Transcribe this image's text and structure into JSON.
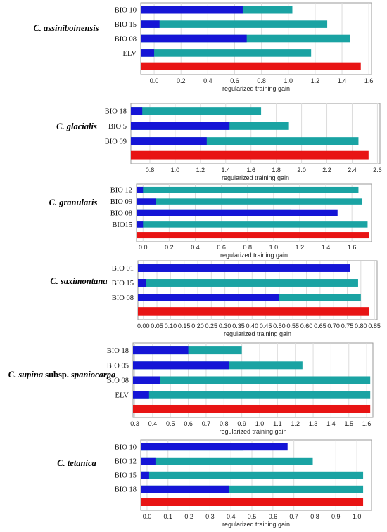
{
  "colors": {
    "without_variable": "#1aa3a3",
    "with_only_variable": "#1515d6",
    "all_variables": "#e81414"
  },
  "chart_data": [
    {
      "type": "bar",
      "title": "C. assiniboinensis",
      "xlabel": "regularized training gain",
      "xlim": [
        -0.1,
        1.62
      ],
      "xticks": [
        0.0,
        0.2,
        0.4,
        0.6,
        0.8,
        1.0,
        1.2,
        1.4,
        1.6
      ],
      "tick_labels": [
        "0.0",
        "0.2",
        "0.4",
        "0.6",
        "0.8",
        "1.0",
        "1.2",
        "1.4",
        "1.6"
      ],
      "categories": [
        "BIO 10",
        "BIO 15",
        "BIO 08",
        "ELV"
      ],
      "series": [
        {
          "values": [
            1.03,
            1.29,
            1.46,
            1.17
          ]
        },
        {
          "values": [
            0.66,
            0.04,
            0.69,
            0.0
          ]
        }
      ],
      "all_variables": 1.54
    },
    {
      "type": "bar",
      "title": "C. glacialis",
      "xlabel": "regularized training gain",
      "xlim": [
        0.65,
        2.62
      ],
      "xticks": [
        0.8,
        1.0,
        1.2,
        1.4,
        1.6,
        1.8,
        2.0,
        2.2,
        2.4,
        2.6
      ],
      "tick_labels": [
        "0.8",
        "1.0",
        "1.2",
        "1.4",
        "1.6",
        "1.8",
        "2.0",
        "2.2",
        "2.4",
        "2.6"
      ],
      "categories": [
        "BIO 18",
        "BIO 5",
        "BIO 09"
      ],
      "series": [
        {
          "values": [
            1.68,
            1.9,
            2.45
          ]
        },
        {
          "values": [
            0.74,
            1.43,
            1.25
          ]
        }
      ],
      "all_variables": 2.53
    },
    {
      "type": "bar",
      "title": "C. granularis",
      "xlabel": "regularized training gain",
      "xlim": [
        -0.05,
        1.75
      ],
      "xticks": [
        0.0,
        0.2,
        0.4,
        0.6,
        0.8,
        1.0,
        1.2,
        1.4,
        1.6
      ],
      "tick_labels": [
        "0.0",
        "0.2",
        "0.4",
        "0.6",
        "0.8",
        "1.0",
        "1.2",
        "1.4",
        "1.6"
      ],
      "categories": [
        "BIO 12",
        "BIO 09",
        "BIO 08",
        "BIO15"
      ],
      "series": [
        {
          "values": [
            1.65,
            1.68,
            1.13,
            1.72
          ]
        },
        {
          "values": [
            0.0,
            0.1,
            1.49,
            0.0
          ]
        }
      ],
      "all_variables": 1.73
    },
    {
      "type": "bar",
      "title": "C. saximontana",
      "xlabel": "regularized training gain",
      "xlim": [
        -0.02,
        0.86
      ],
      "xticks": [
        0.0,
        0.05,
        0.1,
        0.15,
        0.2,
        0.25,
        0.3,
        0.35,
        0.4,
        0.45,
        0.5,
        0.55,
        0.6,
        0.65,
        0.7,
        0.75,
        0.8,
        0.85
      ],
      "tick_labels": [
        "0.00",
        "0.05",
        "0.10",
        "0.15",
        "0.20",
        "0.25",
        "0.30",
        "0.35",
        "0.40",
        "0.45",
        "0.50",
        "0.55",
        "0.60",
        "0.65",
        "0.70",
        "0.75",
        "0.80",
        "0.85"
      ],
      "categories": [
        "BIO 01",
        "BIO 15",
        "BIO 08"
      ],
      "series": [
        {
          "values": [
            0.5,
            0.79,
            0.8
          ]
        },
        {
          "values": [
            0.76,
            0.01,
            0.5
          ]
        }
      ],
      "all_variables": 0.83
    },
    {
      "type": "bar",
      "title": "C. supina",
      "title_suffix": " subsp. ",
      "title_tail": "spaniocarpa",
      "xlabel": "regularized training gain",
      "xlim": [
        0.29,
        1.635
      ],
      "xticks": [
        0.3,
        0.4,
        0.5,
        0.6,
        0.7,
        0.8,
        0.9,
        1.0,
        1.1,
        1.2,
        1.3,
        1.4,
        1.5,
        1.6
      ],
      "tick_labels": [
        "0.3",
        "0.4",
        "0.5",
        "0.6",
        "0.7",
        "0.8",
        "0.9",
        "1.0",
        "1.1",
        "1.2",
        "1.3",
        "1.4",
        "1.5",
        "1.6"
      ],
      "categories": [
        "BIO 18",
        "BIO 05",
        "BIO 08",
        "ELV"
      ],
      "series": [
        {
          "values": [
            0.9,
            1.24,
            1.62,
            1.62
          ]
        },
        {
          "values": [
            0.6,
            0.83,
            0.44,
            0.38
          ]
        }
      ],
      "all_variables": 1.62
    },
    {
      "type": "bar",
      "title": "C. tetanica",
      "xlabel": "regularized training gain",
      "xlim": [
        -0.03,
        1.07
      ],
      "xticks": [
        0.0,
        0.1,
        0.2,
        0.3,
        0.4,
        0.5,
        0.6,
        0.7,
        0.8,
        0.9,
        1.0
      ],
      "tick_labels": [
        "0.0",
        "0.1",
        "0.2",
        "0.3",
        "0.4",
        "0.5",
        "0.6",
        "0.7",
        "0.8",
        "0.9",
        "1.0"
      ],
      "categories": [
        "BIO 10",
        "BIO 12",
        "BIO 15",
        "BIO 18"
      ],
      "series": [
        {
          "values": [
            0.46,
            0.79,
            1.03,
            1.03
          ]
        },
        {
          "values": [
            0.67,
            0.04,
            0.01,
            0.39
          ]
        }
      ],
      "all_variables": 1.03
    }
  ]
}
